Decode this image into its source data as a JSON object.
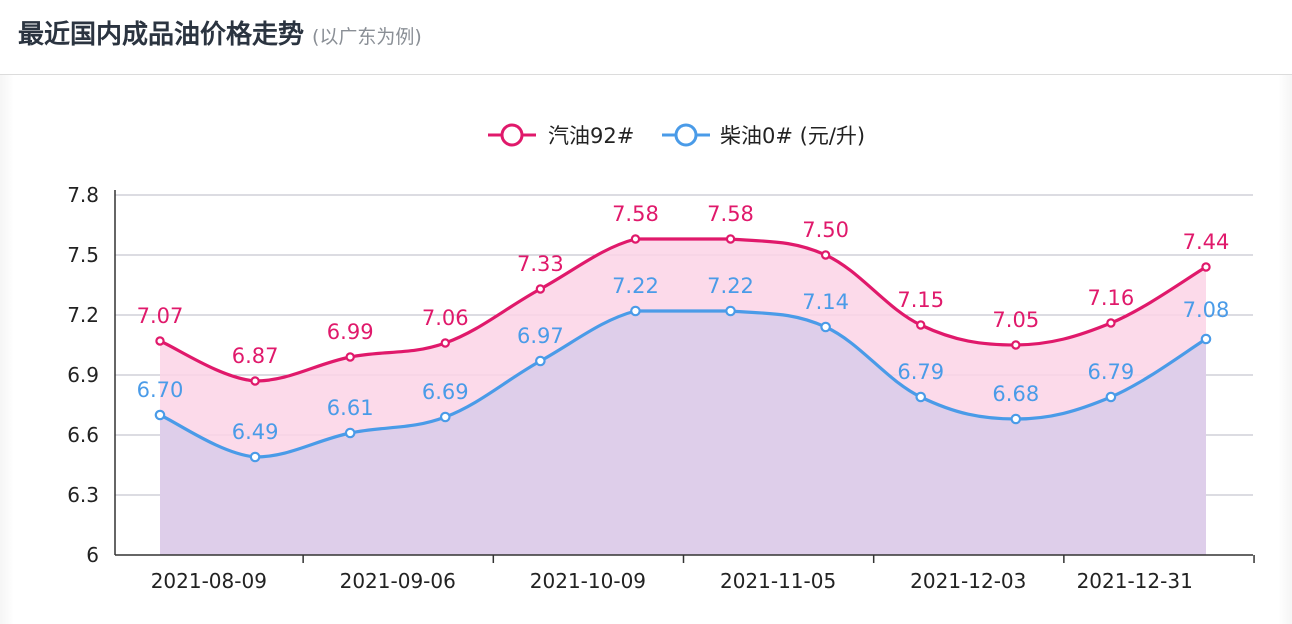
{
  "header": {
    "title": "最近国内成品油价格走势",
    "subtitle": "(以广东为例)"
  },
  "chart_data": {
    "type": "line",
    "legend_position": "top-center",
    "grid": true,
    "smooth": true,
    "ylim": [
      6,
      7.8
    ],
    "y_ticks": [
      "6",
      "6.3",
      "6.6",
      "6.9",
      "7.2",
      "7.5",
      "7.8"
    ],
    "x_tick_labels": [
      "2021-08-09",
      "2021-09-06",
      "2021-10-09",
      "2021-11-05",
      "2021-12-03",
      "2021-12-31"
    ],
    "points": 12,
    "series": [
      {
        "name": "汽油92#",
        "color": "#e0196b",
        "fill": "#fbd3e6",
        "values": [
          7.07,
          6.87,
          6.99,
          7.06,
          7.33,
          7.58,
          7.58,
          7.5,
          7.15,
          7.05,
          7.16,
          7.44
        ],
        "labels": [
          "7.07",
          "6.87",
          "6.99",
          "7.06",
          "7.33",
          "7.58",
          "7.58",
          "7.50",
          "7.15",
          "7.05",
          "7.16",
          "7.44"
        ]
      },
      {
        "name": "柴油0# (元/升)",
        "color": "#4a9be8",
        "fill": "#dccdea",
        "values": [
          6.7,
          6.49,
          6.61,
          6.69,
          6.97,
          7.22,
          7.22,
          7.14,
          6.79,
          6.68,
          6.79,
          7.08
        ],
        "labels": [
          "6.70",
          "6.49",
          "6.61",
          "6.69",
          "6.97",
          "7.22",
          "7.22",
          "7.14",
          "6.79",
          "6.68",
          "6.79",
          "7.08"
        ]
      }
    ]
  }
}
